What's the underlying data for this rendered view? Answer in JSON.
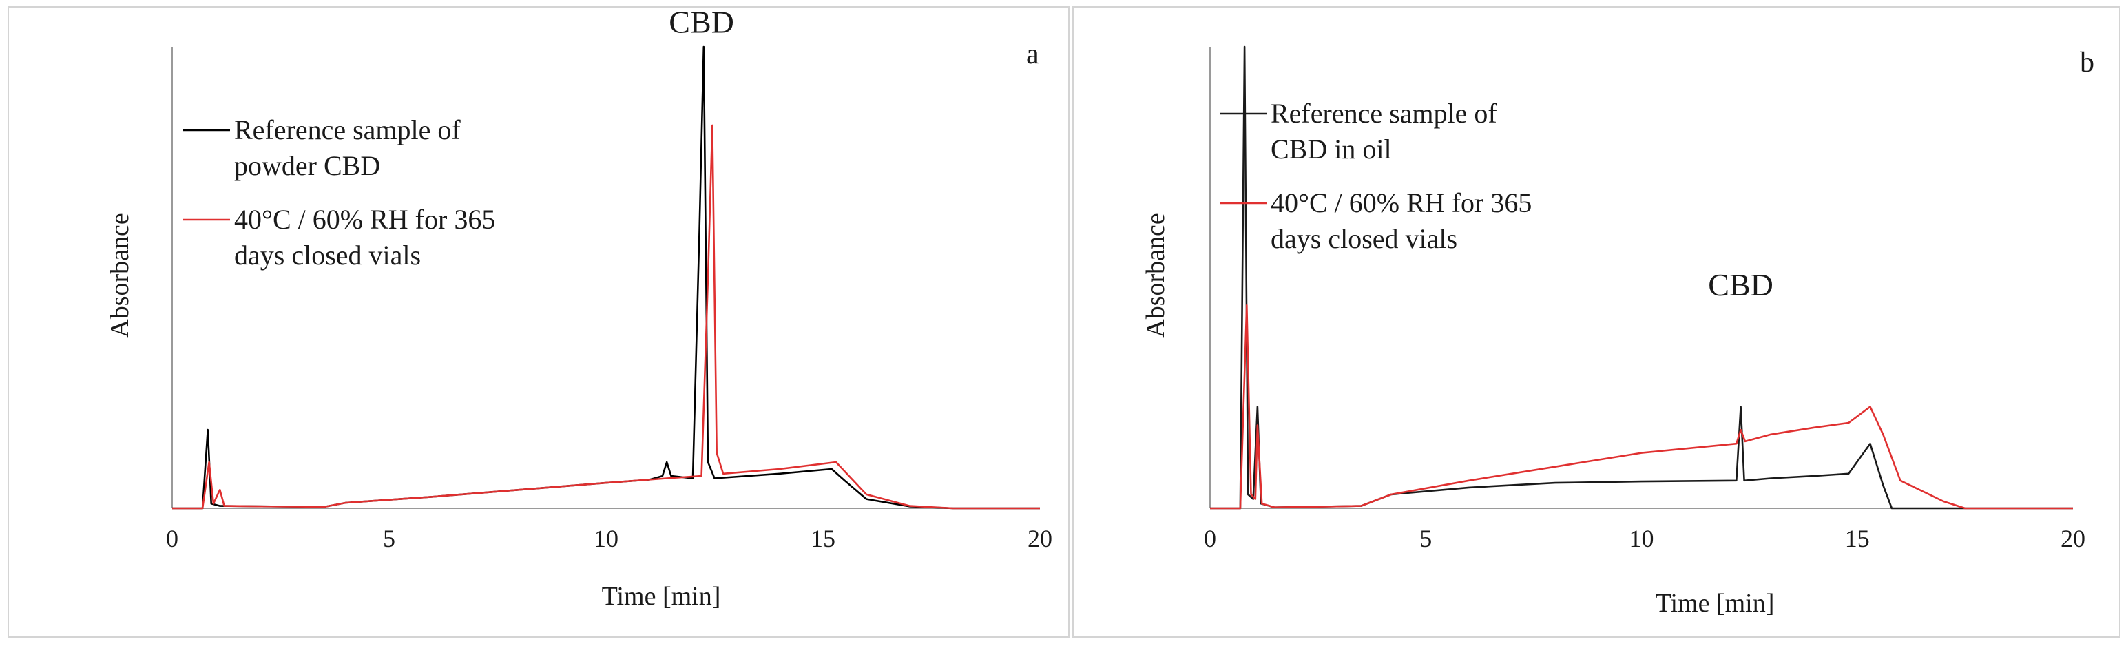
{
  "chart_data": [
    {
      "type": "line",
      "panel_label": "a",
      "xlabel": "Time [min]",
      "ylabel": "Absorbance",
      "xlim": [
        0,
        20
      ],
      "ylim": [
        0,
        100
      ],
      "x_ticks": [
        0,
        5,
        10,
        15,
        20
      ],
      "grid": false,
      "legend_position": "top-left",
      "annotations": [
        {
          "text": "CBD",
          "x": 12.2,
          "y": 101
        }
      ],
      "series": [
        {
          "name": "Reference sample of powder CBD",
          "legend_lines": [
            "Reference sample of",
            "powder CBD"
          ],
          "color": "#000000",
          "points": [
            [
              0,
              0
            ],
            [
              0.7,
              0
            ],
            [
              0.82,
              17
            ],
            [
              0.9,
              1
            ],
            [
              1.1,
              0.5
            ],
            [
              3.5,
              0.3
            ],
            [
              4,
              1.2
            ],
            [
              6,
              2.5
            ],
            [
              8,
              4
            ],
            [
              10,
              5.5
            ],
            [
              11,
              6.2
            ],
            [
              11.3,
              7
            ],
            [
              11.4,
              10
            ],
            [
              11.5,
              7
            ],
            [
              12.0,
              6.5
            ],
            [
              12.15,
              60
            ],
            [
              12.25,
              100
            ],
            [
              12.35,
              10
            ],
            [
              12.5,
              6.5
            ],
            [
              14,
              7.5
            ],
            [
              15.2,
              8.5
            ],
            [
              15.5,
              6
            ],
            [
              16,
              2
            ],
            [
              17,
              0.4
            ],
            [
              18,
              0
            ],
            [
              20,
              0
            ]
          ]
        },
        {
          "name": "40°C / 60% RH for 365 days closed vials",
          "legend_lines": [
            "40°C / 60% RH for 365",
            "days closed vials"
          ],
          "color": "#e03030",
          "points": [
            [
              0,
              0
            ],
            [
              0.7,
              0
            ],
            [
              0.85,
              10
            ],
            [
              0.95,
              1
            ],
            [
              1.1,
              4
            ],
            [
              1.2,
              0.5
            ],
            [
              3.5,
              0.3
            ],
            [
              4,
              1.2
            ],
            [
              6,
              2.5
            ],
            [
              8,
              4
            ],
            [
              10,
              5.5
            ],
            [
              11.4,
              6.5
            ],
            [
              12.2,
              7
            ],
            [
              12.35,
              50
            ],
            [
              12.45,
              83
            ],
            [
              12.55,
              12
            ],
            [
              12.7,
              7.5
            ],
            [
              14,
              8.5
            ],
            [
              15.3,
              10
            ],
            [
              15.6,
              7
            ],
            [
              16,
              3
            ],
            [
              17,
              0.5
            ],
            [
              18,
              0
            ],
            [
              20,
              0
            ]
          ]
        }
      ]
    },
    {
      "type": "line",
      "panel_label": "b",
      "xlabel": "Time [min]",
      "ylabel": "Absorbance",
      "xlim": [
        0,
        20
      ],
      "ylim": [
        0,
        100
      ],
      "x_ticks": [
        0,
        5,
        10,
        15,
        20
      ],
      "grid": false,
      "legend_position": "top-left",
      "annotations": [
        {
          "text": "CBD",
          "x": 12.3,
          "y": 44
        }
      ],
      "series": [
        {
          "name": "Reference sample of CBD in oil",
          "legend_lines": [
            "Reference sample of",
            "CBD in oil"
          ],
          "color": "#1a1a1a",
          "points": [
            [
              0,
              0
            ],
            [
              0.7,
              0
            ],
            [
              0.8,
              100
            ],
            [
              0.88,
              3
            ],
            [
              1.0,
              2
            ],
            [
              1.1,
              22
            ],
            [
              1.18,
              1
            ],
            [
              1.5,
              0.2
            ],
            [
              3.5,
              0.5
            ],
            [
              4.2,
              3
            ],
            [
              6,
              4.5
            ],
            [
              8,
              5.5
            ],
            [
              10,
              5.8
            ],
            [
              12.2,
              6
            ],
            [
              12.3,
              22
            ],
            [
              12.38,
              6
            ],
            [
              13,
              6.5
            ],
            [
              14,
              7
            ],
            [
              14.8,
              7.5
            ],
            [
              15.3,
              14
            ],
            [
              15.6,
              5
            ],
            [
              15.8,
              0
            ],
            [
              20,
              0
            ]
          ]
        },
        {
          "name": "40°C / 60% RH for 365 days closed vials",
          "legend_lines": [
            "40°C / 60% RH for 365",
            "days closed vials"
          ],
          "color": "#e03030",
          "points": [
            [
              0,
              0
            ],
            [
              0.7,
              0
            ],
            [
              0.85,
              44
            ],
            [
              0.95,
              3
            ],
            [
              1.05,
              2
            ],
            [
              1.1,
              18
            ],
            [
              1.2,
              1
            ],
            [
              1.5,
              0.2
            ],
            [
              3.5,
              0.5
            ],
            [
              4.2,
              3
            ],
            [
              6,
              6
            ],
            [
              8,
              9
            ],
            [
              10,
              12
            ],
            [
              12.2,
              14
            ],
            [
              12.3,
              17
            ],
            [
              12.4,
              14.5
            ],
            [
              13,
              16
            ],
            [
              14,
              17.5
            ],
            [
              14.8,
              18.5
            ],
            [
              15.3,
              22
            ],
            [
              15.6,
              16
            ],
            [
              16,
              6
            ],
            [
              17,
              1.5
            ],
            [
              17.5,
              0
            ],
            [
              20,
              0
            ]
          ]
        }
      ]
    }
  ]
}
